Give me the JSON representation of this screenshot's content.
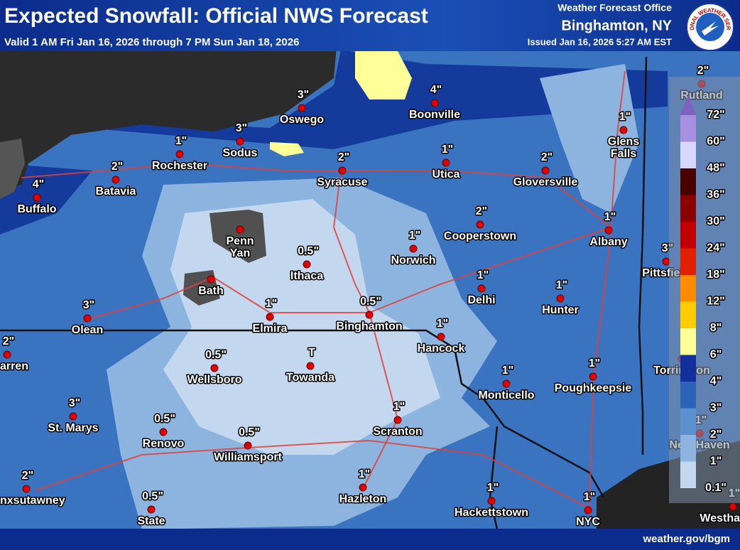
{
  "header": {
    "title": "Expected Snowfall: Official NWS Forecast",
    "subtitle": "Valid 1 AM Fri Jan 16, 2026 through 7 PM Sun Jan 18, 2026",
    "office_line": "Weather Forecast Office",
    "office": "Binghamton, NY",
    "issued": "Issued Jan 16, 2026 5:27 AM EST",
    "logo_text": "NATIONAL WEATHER SERVICE"
  },
  "cities": [
    {
      "name": "Oswego",
      "amount": "3\""
    },
    {
      "name": "Boonville",
      "amount": "4\""
    },
    {
      "name": "Sodus",
      "amount": "3\""
    },
    {
      "name": "Rochester",
      "amount": "1\""
    },
    {
      "name": "Syracuse",
      "amount": "2\""
    },
    {
      "name": "Utica",
      "amount": "1\""
    },
    {
      "name": "Gloversville",
      "amount": "2\""
    },
    {
      "name": "Glens Falls",
      "amount": "1\""
    },
    {
      "name": "Rutland",
      "amount": "2\""
    },
    {
      "name": "Batavia",
      "amount": "2\""
    },
    {
      "name": "Buffalo",
      "amount": "4\""
    },
    {
      "name": "Penn Yan"
    },
    {
      "name": "Cooperstown",
      "amount": "2\""
    },
    {
      "name": "Albany",
      "amount": "1\""
    },
    {
      "name": "Norwich",
      "amount": "1\""
    },
    {
      "name": "Ithaca",
      "amount": "0.5\""
    },
    {
      "name": "Pittsfield",
      "amount": "3\""
    },
    {
      "name": "Bath"
    },
    {
      "name": "Olean",
      "amount": "3\""
    },
    {
      "name": "Delhi",
      "amount": "1\""
    },
    {
      "name": "Hunter",
      "amount": "1\""
    },
    {
      "name": "Elmira",
      "amount": "1\""
    },
    {
      "name": "Binghamton",
      "amount": "0.5\""
    },
    {
      "name": "Hancock",
      "amount": "1\""
    },
    {
      "name": "arren",
      "amount": "2\""
    },
    {
      "name": "Wellsboro",
      "amount": "0.5\""
    },
    {
      "name": "Towanda",
      "amount": "T"
    },
    {
      "name": "Monticello",
      "amount": "1\""
    },
    {
      "name": "Poughkeepsie",
      "amount": "1\""
    },
    {
      "name": "Torrington"
    },
    {
      "name": "St. Marys",
      "amount": "3\""
    },
    {
      "name": "Scranton",
      "amount": "1\""
    },
    {
      "name": "Renovo",
      "amount": "0.5\""
    },
    {
      "name": "Williamsport",
      "amount": "0.5\""
    },
    {
      "name": "nxsutawney",
      "amount": "2\""
    },
    {
      "name": "Hazleton",
      "amount": "1\""
    },
    {
      "name": "Hackettstown",
      "amount": "1\""
    },
    {
      "name": "NYC",
      "amount": "1\""
    },
    {
      "name": "State",
      "amount": "0.5\""
    },
    {
      "name": "New Haven",
      "amount": "1\""
    },
    {
      "name": "Westha",
      "amount": "1\""
    }
  ],
  "legend": {
    "labels": [
      "0.1\"",
      "1\"",
      "2\"",
      "3\"",
      "4\"",
      "6\"",
      "8\"",
      "12\"",
      "18\"",
      "24\"",
      "30\"",
      "36\"",
      "48\"",
      "60\"",
      "72\""
    ],
    "colors": [
      "#c3d8ee",
      "#8cb4de",
      "#5a8fd0",
      "#2c63b8",
      "#12309a",
      "#ffff99",
      "#ffcc00",
      "#ff8c00",
      "#e02000",
      "#c00000",
      "#8b0000",
      "#4a0000",
      "#d8d8ff",
      "#a890e0",
      "#8060c0"
    ]
  },
  "footer": {
    "url": "weather.gov/bgm"
  }
}
